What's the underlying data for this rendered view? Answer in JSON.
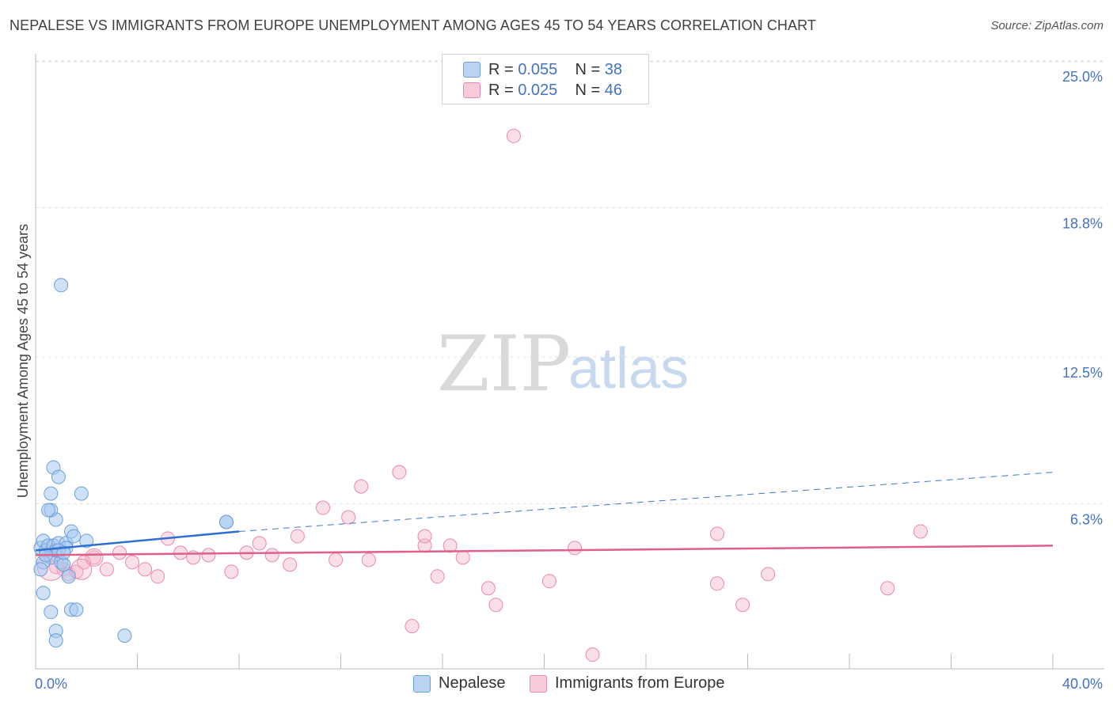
{
  "header": {
    "title": "NEPALESE VS IMMIGRANTS FROM EUROPE UNEMPLOYMENT AMONG AGES 45 TO 54 YEARS CORRELATION CHART",
    "source": "Source: ZipAtlas.com"
  },
  "legend": {
    "nepalese": {
      "r_label": "R = ",
      "r_value": "0.055",
      "n_label": "N = ",
      "n_value": "38",
      "color": "#a8c8f0"
    },
    "europe": {
      "r_label": "R = ",
      "r_value": "0.025",
      "n_label": "N = ",
      "n_value": "46",
      "color": "#f6b8cb"
    }
  },
  "bottom_legend": {
    "nepalese": "Nepalese",
    "europe": "Immigrants from Europe"
  },
  "watermark": {
    "zip": "ZIP",
    "atlas": "atlas"
  },
  "chart_data": {
    "type": "scatter",
    "title": "NEPALESE VS IMMIGRANTS FROM EUROPE UNEMPLOYMENT AMONG AGES 45 TO 54 YEARS CORRELATION CHART",
    "xlabel": "",
    "ylabel": "Unemployment Among Ages 45 to 54 years",
    "xlim": [
      0,
      40
    ],
    "ylim": [
      0,
      25.0
    ],
    "x_tick_labels": [
      "0.0%",
      "40.0%"
    ],
    "y_ticks": [
      6.3,
      12.5,
      18.8,
      25.0
    ],
    "y_tick_labels": [
      "6.3%",
      "12.5%",
      "18.8%",
      "25.0%"
    ],
    "grid": true,
    "series": [
      {
        "name": "Nepalese",
        "color": "#a8c8f0",
        "stroke": "#6a9fd8",
        "points": [
          [
            0.2,
            5.1
          ],
          [
            0.3,
            5.4
          ],
          [
            0.4,
            5.0
          ],
          [
            0.5,
            5.2
          ],
          [
            0.6,
            4.7
          ],
          [
            0.3,
            4.5
          ],
          [
            0.2,
            4.2
          ],
          [
            0.7,
            5.2
          ],
          [
            0.8,
            5.0
          ],
          [
            0.9,
            5.3
          ],
          [
            1.0,
            4.5
          ],
          [
            1.2,
            5.3
          ],
          [
            1.2,
            5.1
          ],
          [
            1.4,
            5.8
          ],
          [
            1.5,
            5.6
          ],
          [
            0.8,
            6.3
          ],
          [
            0.6,
            6.7
          ],
          [
            0.5,
            6.7
          ],
          [
            0.6,
            7.4
          ],
          [
            0.7,
            8.5
          ],
          [
            0.9,
            8.1
          ],
          [
            1.8,
            7.4
          ],
          [
            1.1,
            4.4
          ],
          [
            1.3,
            3.9
          ],
          [
            2.0,
            5.4
          ],
          [
            0.3,
            3.2
          ],
          [
            0.6,
            2.4
          ],
          [
            1.4,
            2.5
          ],
          [
            1.6,
            2.5
          ],
          [
            0.8,
            1.6
          ],
          [
            0.8,
            1.2
          ],
          [
            3.5,
            1.4
          ],
          [
            1.0,
            16.2
          ],
          [
            7.5,
            6.2
          ],
          [
            7.5,
            6.2
          ],
          [
            0.4,
            4.8
          ],
          [
            0.9,
            5.0
          ],
          [
            1.1,
            4.9
          ]
        ],
        "trend": {
          "solid": [
            [
              0,
              5.0
            ],
            [
              8,
              5.8
            ]
          ],
          "dashed": [
            [
              8,
              5.8
            ],
            [
              40,
              8.3
            ]
          ]
        }
      },
      {
        "name": "Immigrants from Europe",
        "color": "#f6b8cb",
        "stroke": "#e88aa8",
        "points": [
          [
            0.5,
            4.8
          ],
          [
            0.8,
            4.3
          ],
          [
            1.1,
            4.2
          ],
          [
            1.3,
            4.0
          ],
          [
            1.6,
            4.1
          ],
          [
            2.3,
            4.7
          ],
          [
            2.8,
            4.2
          ],
          [
            3.3,
            4.9
          ],
          [
            3.8,
            4.5
          ],
          [
            4.3,
            4.2
          ],
          [
            4.8,
            3.9
          ],
          [
            5.2,
            5.5
          ],
          [
            5.7,
            4.9
          ],
          [
            6.2,
            4.7
          ],
          [
            6.8,
            4.8
          ],
          [
            7.7,
            4.1
          ],
          [
            8.3,
            4.9
          ],
          [
            8.8,
            5.3
          ],
          [
            9.3,
            4.8
          ],
          [
            10.0,
            4.4
          ],
          [
            10.3,
            5.6
          ],
          [
            11.3,
            6.8
          ],
          [
            11.8,
            4.6
          ],
          [
            12.3,
            6.4
          ],
          [
            12.8,
            7.7
          ],
          [
            13.1,
            4.6
          ],
          [
            14.3,
            8.3
          ],
          [
            14.8,
            1.8
          ],
          [
            15.3,
            5.2
          ],
          [
            15.3,
            5.6
          ],
          [
            15.8,
            3.9
          ],
          [
            16.3,
            5.2
          ],
          [
            16.8,
            4.7
          ],
          [
            17.8,
            3.4
          ],
          [
            18.1,
            2.7
          ],
          [
            18.8,
            22.5
          ],
          [
            20.2,
            3.7
          ],
          [
            21.2,
            5.1
          ],
          [
            21.9,
            0.6
          ],
          [
            26.8,
            5.7
          ],
          [
            26.8,
            3.6
          ],
          [
            27.8,
            2.7
          ],
          [
            28.8,
            4.0
          ],
          [
            33.5,
            3.4
          ],
          [
            34.8,
            5.8
          ],
          [
            1.9,
            4.5
          ]
        ],
        "trend": {
          "solid": [
            [
              0,
              4.8
            ],
            [
              40,
              5.2
            ]
          ]
        }
      }
    ]
  }
}
